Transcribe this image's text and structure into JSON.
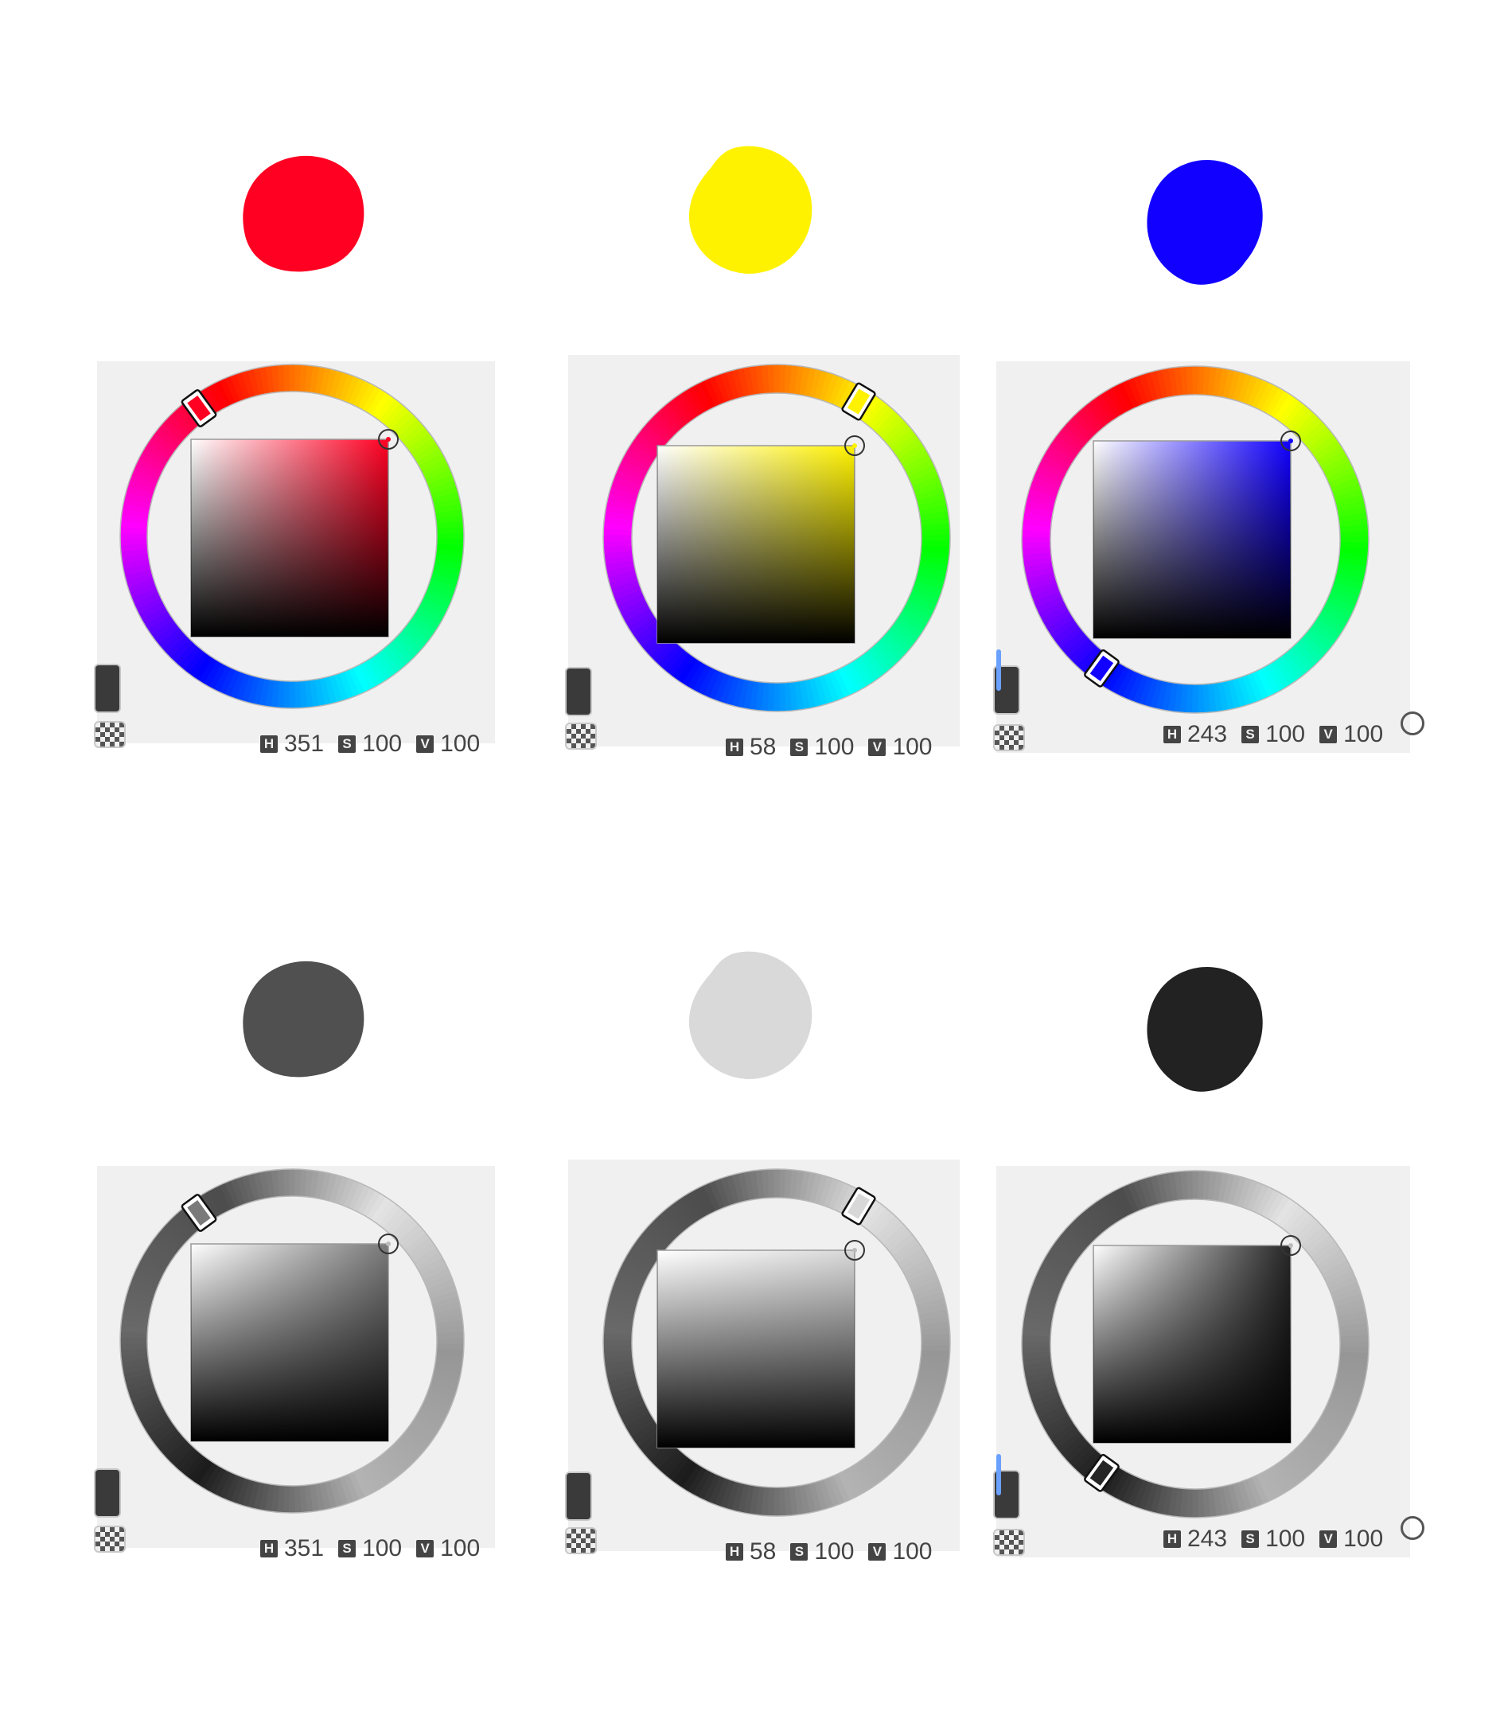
{
  "swatches": [
    {
      "color": "#ff0022"
    },
    {
      "color": "#fff200"
    },
    {
      "color": "#1100ff"
    },
    {
      "color": "#505050"
    },
    {
      "color": "#d9d9d9"
    },
    {
      "color": "#222222"
    }
  ],
  "pickers": [
    {
      "mode": "color",
      "hue": 351,
      "hue_label": "351",
      "sat_label": "100",
      "val_label": "100",
      "hue_color": "#ff0022"
    },
    {
      "mode": "color",
      "hue": 58,
      "hue_label": "58",
      "sat_label": "100",
      "val_label": "100",
      "hue_color": "#fff200"
    },
    {
      "mode": "color",
      "hue": 243,
      "hue_label": "243",
      "sat_label": "100",
      "val_label": "100",
      "hue_color": "#1100ff"
    },
    {
      "mode": "gray",
      "hue": 351,
      "hue_label": "351",
      "sat_label": "100",
      "val_label": "100",
      "hue_color": "#7a7a7a"
    },
    {
      "mode": "gray",
      "hue": 58,
      "hue_label": "58",
      "sat_label": "100",
      "val_label": "100",
      "hue_color": "#d8d8d8"
    },
    {
      "mode": "gray",
      "hue": 243,
      "hue_label": "243",
      "sat_label": "100",
      "val_label": "100",
      "hue_color": "#262626"
    }
  ],
  "labels": {
    "h": "H",
    "s": "S",
    "v": "V"
  }
}
